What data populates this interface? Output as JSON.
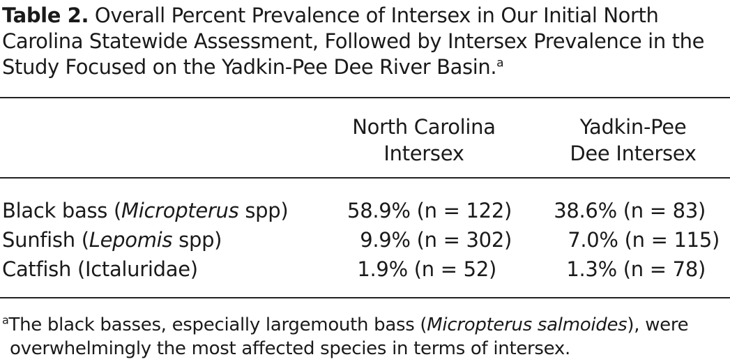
{
  "caption": {
    "label": "Table 2.",
    "text": "Overall Percent Prevalence of Intersex in Our Initial North Carolina Statewide Assessment, Followed by Intersex Prevalence in the Study Focused on the Yadkin-Pee Dee River Basin.",
    "footnote_marker": "a"
  },
  "columns": {
    "north_carolina": [
      "North Carolina",
      "Intersex"
    ],
    "yadkin": [
      "Yadkin-Pee",
      "Dee Intersex"
    ]
  },
  "rows": [
    {
      "name_prefix": "Black bass (",
      "name_italic": "Micropterus",
      "name_suffix": " spp)",
      "north_carolina": "58.9% (n = 122)",
      "yadkin": "38.6% (n = 83)"
    },
    {
      "name_prefix": "Sunfish (",
      "name_italic": "Lepomis",
      "name_suffix": " spp)",
      "north_carolina": "9.9% (n = 302)",
      "yadkin": "7.0% (n = 115)"
    },
    {
      "name_prefix": "Catfish (Ictaluridae)",
      "name_italic": "",
      "name_suffix": "",
      "north_carolina": "1.9% (n = 52)",
      "yadkin": "1.3% (n = 78)"
    }
  ],
  "footnote": {
    "marker": "a",
    "text_before": "The black basses, especially largemouth bass (",
    "text_italic": "Micropterus salmoides",
    "text_after": "), were",
    "line2": "overwhelmingly the most affected species in terms of intersex."
  }
}
